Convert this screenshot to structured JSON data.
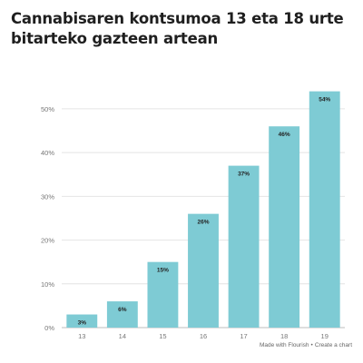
{
  "title_lines": [
    "Cannabisaren kontsumoa 13 eta 18 urte",
    "bitarteko gazteen artean"
  ],
  "footer": {
    "made_with": "Made with Flourish",
    "separator": "•",
    "create_link": "Create a chart"
  },
  "colors": {
    "bar": "#7ecbd4",
    "grid": "#e4e4e4",
    "axis": "#bdbdbd",
    "tick_text": "#777777",
    "label_text": "#222222"
  },
  "chart_data": {
    "type": "bar",
    "categories": [
      "13",
      "14",
      "15",
      "16",
      "17",
      "18",
      "19"
    ],
    "values": [
      3,
      6,
      15,
      26,
      37,
      46,
      54
    ],
    "data_labels": [
      "3%",
      "6%",
      "15%",
      "26%",
      "37%",
      "46%",
      "54%"
    ],
    "ylim": [
      0,
      56
    ],
    "yticks": [
      0,
      10,
      20,
      30,
      40,
      50
    ],
    "ytick_labels": [
      "0%",
      "10%",
      "20%",
      "30%",
      "40%",
      "50%"
    ],
    "grid": true,
    "xlabel": "",
    "ylabel": ""
  }
}
